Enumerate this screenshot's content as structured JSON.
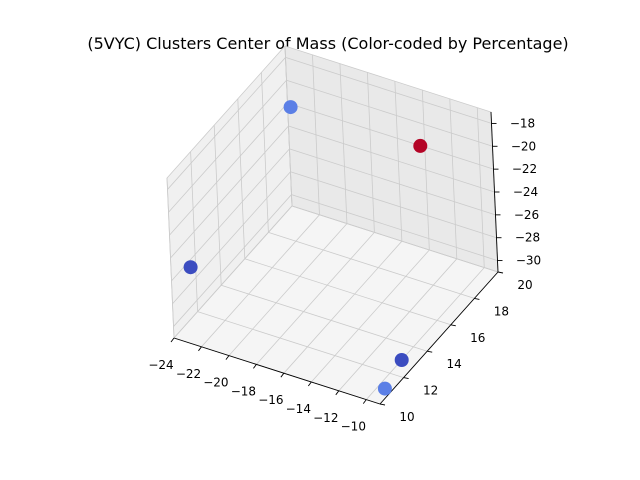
{
  "chart_data": {
    "type": "scatter",
    "projection": "3d",
    "title": "(5VYC) Clusters Center of Mass (Color-coded by Percentage)",
    "xlabel": "",
    "ylabel": "",
    "zlabel": "",
    "xlim": [
      -24,
      -9
    ],
    "ylim": [
      10,
      20
    ],
    "zlim": [
      -31,
      -17
    ],
    "x_ticks": [
      -24,
      -22,
      -20,
      -18,
      -16,
      -14,
      -12,
      -10
    ],
    "y_ticks": [
      10,
      12,
      14,
      16,
      18,
      20
    ],
    "z_ticks": [
      -30,
      -28,
      -26,
      -24,
      -22,
      -20,
      -18
    ],
    "grid": true,
    "colormap": "coolwarm",
    "points": [
      {
        "x": -21.5,
        "y": 17.5,
        "z": -18.5,
        "color": "#5b7fe6"
      },
      {
        "x": -12.5,
        "y": 18.0,
        "z": -19.0,
        "color": "#b40426"
      },
      {
        "x": -23.0,
        "y": 10.5,
        "z": -25.0,
        "color": "#3b4cc0"
      },
      {
        "x": -10.0,
        "y": 13.0,
        "z": -31.0,
        "color": "#3b4cc0"
      },
      {
        "x": -9.5,
        "y": 11.0,
        "z": -31.0,
        "color": "#5b7fe6"
      }
    ]
  },
  "colors": {
    "pane_left": "#f0f0f0",
    "pane_right": "#e9e9e9",
    "pane_floor": "#f5f5f5",
    "grid": "#cbcbcb",
    "axis": "#000000"
  }
}
